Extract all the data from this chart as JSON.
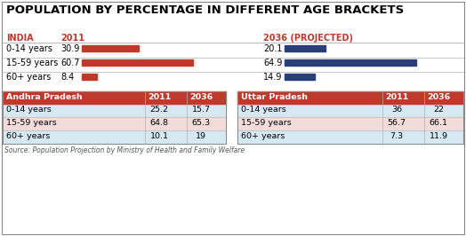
{
  "title": "POPULATION BY PERCENTAGE IN DIFFERENT AGE BRACKETS",
  "title_fontsize": 9.5,
  "india_label": "INDIA",
  "year2011_label": "2011",
  "year2036_label": "2036 (PROJECTED)",
  "india_categories": [
    "0-14 years",
    "15-59 years",
    "60+ years"
  ],
  "india_2011_values": [
    30.9,
    60.7,
    8.4
  ],
  "india_2036_values": [
    20.1,
    64.9,
    14.9
  ],
  "bar_max": 68,
  "bar_color_2011": "#c0392b",
  "bar_color_2036": "#2c3e7a",
  "ap_header": [
    "Andhra Pradesh",
    "2011",
    "2036"
  ],
  "up_header": [
    "Uttar Pradesh",
    "2011",
    "2036"
  ],
  "ap_categories": [
    "0-14 years",
    "15-59 years",
    "60+ years"
  ],
  "up_categories": [
    "0-14 years",
    "15-59 years",
    "60+ years"
  ],
  "ap_2011": [
    25.2,
    64.8,
    10.1
  ],
  "ap_2036": [
    15.7,
    65.3,
    19
  ],
  "up_2011": [
    36,
    56.7,
    7.3
  ],
  "up_2036": [
    22,
    66.1,
    11.9
  ],
  "source_text": "Source: Population Projection by Ministry of Health and Family Welfare",
  "header_bg": "#c0392b",
  "header_text_color": "#ffffff",
  "row_bg_light": "#d6e8f2",
  "row_bg_highlight": "#f2dbd8",
  "outer_bg": "#ffffff",
  "india_label_color": "#c0392b",
  "year_label_color": "#c0392b",
  "separator_color": "#b0b0b0",
  "border_color": "#888888",
  "source_color": "#555555"
}
